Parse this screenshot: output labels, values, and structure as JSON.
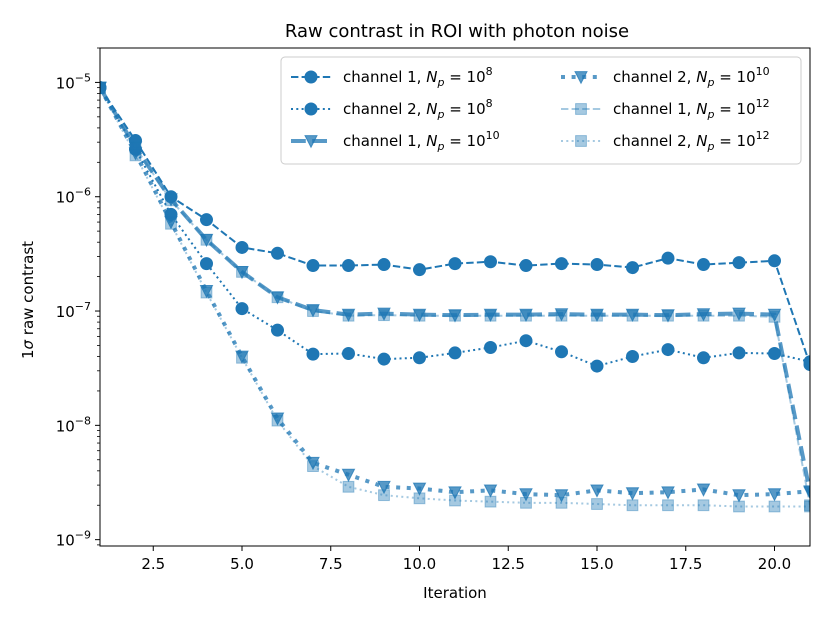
{
  "chart_data": {
    "type": "line",
    "title": "Raw contrast in ROI with photon noise",
    "xlabel": "Iteration",
    "ylabel": "1σ raw contrast",
    "ylabel_sigma": "σ",
    "ylabel_prefix": "1",
    "ylabel_rest": " raw contrast",
    "yscale": "log",
    "xlim": [
      1,
      21
    ],
    "ylim": [
      8.8e-10,
      2e-05
    ],
    "x_ticks": [
      2.5,
      5.0,
      7.5,
      10.0,
      12.5,
      15.0,
      17.5,
      20.0
    ],
    "x_tick_labels": [
      "2.5",
      "5.0",
      "7.5",
      "10.0",
      "12.5",
      "15.0",
      "17.5",
      "20.0"
    ],
    "y_ticks": [
      {
        "value": 1e-05,
        "base": "10",
        "exp": "−5"
      },
      {
        "value": 1e-06,
        "base": "10",
        "exp": "−6"
      },
      {
        "value": 1e-07,
        "base": "10",
        "exp": "−7"
      },
      {
        "value": 1e-08,
        "base": "10",
        "exp": "−8"
      },
      {
        "value": 1e-09,
        "base": "10",
        "exp": "−9"
      }
    ],
    "legend_position": "upper right",
    "color": "#1f77b4",
    "x": [
      1,
      2,
      3,
      4,
      5,
      6,
      7,
      8,
      9,
      10,
      11,
      12,
      13,
      14,
      15,
      16,
      17,
      18,
      19,
      20,
      21
    ],
    "series": [
      {
        "name": "channel 1, N_p = 10^8",
        "label_prefix": "channel 1, ",
        "label_sym": "N",
        "label_sub": "p",
        "label_eq": " = 10",
        "label_exp": "8",
        "marker": "circle",
        "linestyle": "dashed",
        "alpha": 1.0,
        "linewidth": 2,
        "values": [
          9e-06,
          3.1e-06,
          1e-06,
          6.3e-07,
          3.6e-07,
          3.2e-07,
          2.5e-07,
          2.5e-07,
          2.55e-07,
          2.3e-07,
          2.6e-07,
          2.7e-07,
          2.5e-07,
          2.6e-07,
          2.55e-07,
          2.4e-07,
          2.9e-07,
          2.55e-07,
          2.65e-07,
          2.75e-07,
          3.4e-08
        ]
      },
      {
        "name": "channel 2, N_p = 10^8",
        "label_prefix": "channel 2, ",
        "label_sym": "N",
        "label_sub": "p",
        "label_eq": " = 10",
        "label_exp": "8",
        "marker": "circle",
        "linestyle": "dotted",
        "alpha": 1.0,
        "linewidth": 2,
        "values": [
          9e-06,
          2.6e-06,
          7e-07,
          2.6e-07,
          1.05e-07,
          6.8e-08,
          4.2e-08,
          4.25e-08,
          3.8e-08,
          3.9e-08,
          4.3e-08,
          4.8e-08,
          5.5e-08,
          4.4e-08,
          3.3e-08,
          4e-08,
          4.6e-08,
          3.9e-08,
          4.3e-08,
          4.25e-08,
          3.6e-08
        ]
      },
      {
        "name": "channel 1, N_p = 10^10",
        "label_prefix": "channel 1, ",
        "label_sym": "N",
        "label_sub": "p",
        "label_eq": " = 10",
        "label_exp": "10",
        "marker": "triangle",
        "linestyle": "dashed",
        "alpha": 0.75,
        "linewidth": 4,
        "values": [
          9e-06,
          2.7e-06,
          9.5e-07,
          4.2e-07,
          2.2e-07,
          1.32e-07,
          1.02e-07,
          9.3e-08,
          9.5e-08,
          9.3e-08,
          9.2e-08,
          9.3e-08,
          9.3e-08,
          9.4e-08,
          9.3e-08,
          9.3e-08,
          9.2e-08,
          9.4e-08,
          9.5e-08,
          9.3e-08,
          2.6e-09
        ]
      },
      {
        "name": "channel 2, N_p = 10^10",
        "label_prefix": "channel 2, ",
        "label_sym": "N",
        "label_sub": "p",
        "label_eq": " = 10",
        "label_exp": "10",
        "marker": "triangle",
        "linestyle": "dotted",
        "alpha": 0.75,
        "linewidth": 4,
        "values": [
          9e-06,
          2.4e-06,
          6e-07,
          1.5e-07,
          4e-08,
          1.15e-08,
          4.7e-09,
          3.7e-09,
          2.9e-09,
          2.8e-09,
          2.6e-09,
          2.7e-09,
          2.5e-09,
          2.45e-09,
          2.7e-09,
          2.55e-09,
          2.6e-09,
          2.75e-09,
          2.45e-09,
          2.5e-09,
          2.65e-09
        ]
      },
      {
        "name": "channel 1, N_p = 10^12",
        "label_prefix": "channel 1, ",
        "label_sym": "N",
        "label_sub": "p",
        "label_eq": " = 10",
        "label_exp": "12",
        "marker": "square",
        "linestyle": "dashed",
        "alpha": 0.4,
        "linewidth": 2,
        "values": [
          9e-06,
          2.7e-06,
          9.3e-07,
          4.2e-07,
          2.2e-07,
          1.32e-07,
          1e-07,
          9.1e-08,
          9.2e-08,
          9.1e-08,
          9.1e-08,
          9.1e-08,
          9.1e-08,
          9.1e-08,
          9.1e-08,
          9.1e-08,
          9.1e-08,
          9.1e-08,
          9.1e-08,
          8.9e-08,
          2e-09
        ]
      },
      {
        "name": "channel 2, N_p = 10^12",
        "label_prefix": "channel 2, ",
        "label_sym": "N",
        "label_sub": "p",
        "label_eq": " = 10",
        "label_exp": "12",
        "marker": "square",
        "linestyle": "dotted",
        "alpha": 0.4,
        "linewidth": 2,
        "values": [
          9e-06,
          2.3e-06,
          5.8e-07,
          1.45e-07,
          3.9e-08,
          1.1e-08,
          4.4e-09,
          2.9e-09,
          2.45e-09,
          2.3e-09,
          2.2e-09,
          2.15e-09,
          2.1e-09,
          2.1e-09,
          2.05e-09,
          2e-09,
          2e-09,
          2e-09,
          1.95e-09,
          1.95e-09,
          1.95e-09
        ]
      }
    ]
  }
}
